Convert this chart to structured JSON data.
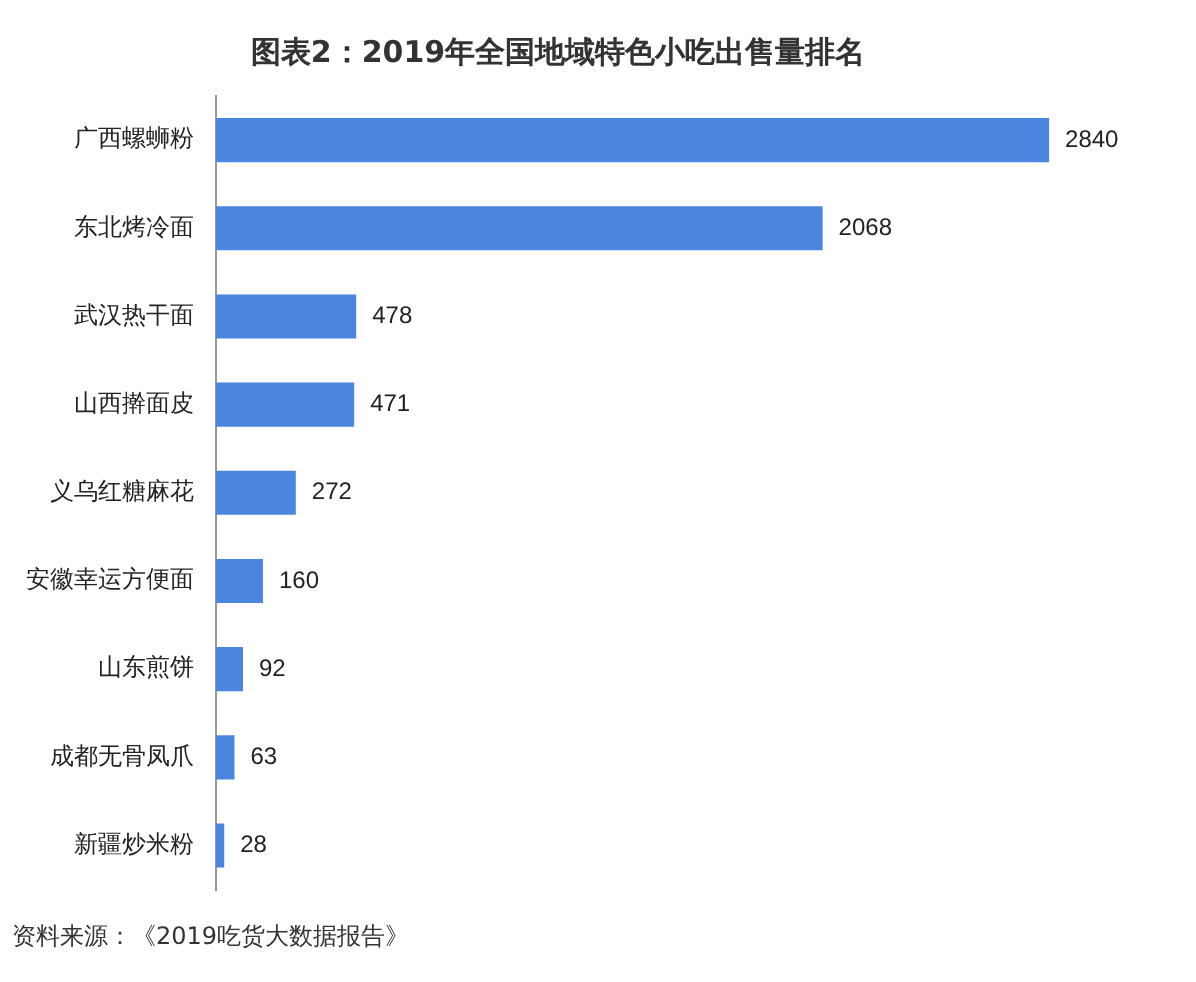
{
  "chart_data": {
    "type": "bar",
    "orientation": "horizontal",
    "title": "图表2：2019年全国地域特色小吃出售量排名",
    "categories": [
      "广西螺蛳粉",
      "东北烤冷面",
      "武汉热干面",
      "山西擀面皮",
      "义乌红糖麻花",
      "安徽幸运方便面",
      "山东煎饼",
      "成都无骨凤爪",
      "新疆炒米粉"
    ],
    "values": [
      2840,
      2068,
      478,
      471,
      272,
      160,
      92,
      63,
      28
    ],
    "color": "#4a86e0",
    "data_labels": true,
    "legend": false,
    "annotations": [
      "资料来源：《2019吃货大数据报告》"
    ]
  }
}
